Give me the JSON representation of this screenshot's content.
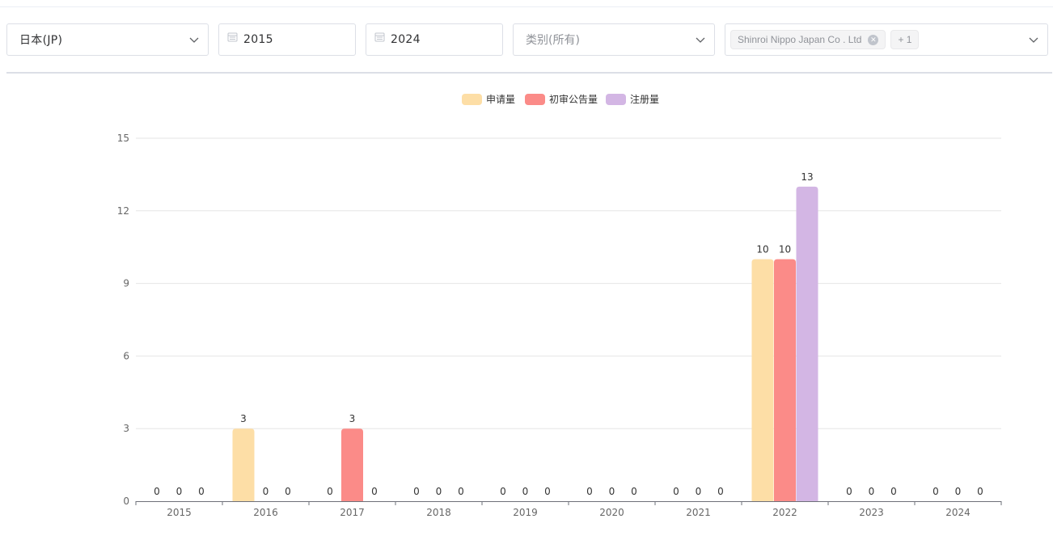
{
  "filters": {
    "country": "日本(JP)",
    "year_from": "2015",
    "year_to": "2024",
    "category_placeholder": "类别(所有)",
    "company_tag": "Shinroi Nippo Japan Co . Ltd",
    "company_more": "+ 1"
  },
  "colors": {
    "series": [
      "#fddea6",
      "#fb8b88",
      "#d3b6e4"
    ],
    "grid": "#e6e6e6",
    "axis": "#6e7079"
  },
  "icons": [
    "chevron-down-icon",
    "calendar-icon",
    "tag-close-icon"
  ],
  "chart_data": {
    "type": "bar",
    "categories": [
      "2015",
      "2016",
      "2017",
      "2018",
      "2019",
      "2020",
      "2021",
      "2022",
      "2023",
      "2024"
    ],
    "series": [
      {
        "name": "申请量",
        "values": [
          0,
          3,
          0,
          0,
          0,
          0,
          0,
          10,
          0,
          0
        ]
      },
      {
        "name": "初审公告量",
        "values": [
          0,
          0,
          3,
          0,
          0,
          0,
          0,
          10,
          0,
          0
        ]
      },
      {
        "name": "注册量",
        "values": [
          0,
          0,
          0,
          0,
          0,
          0,
          0,
          13,
          0,
          0
        ]
      }
    ],
    "yticks": [
      "0",
      "3",
      "6",
      "9",
      "12",
      "15"
    ],
    "ylim": [
      0,
      15
    ],
    "legend": "top-center",
    "grid": true,
    "data_labels": true
  }
}
